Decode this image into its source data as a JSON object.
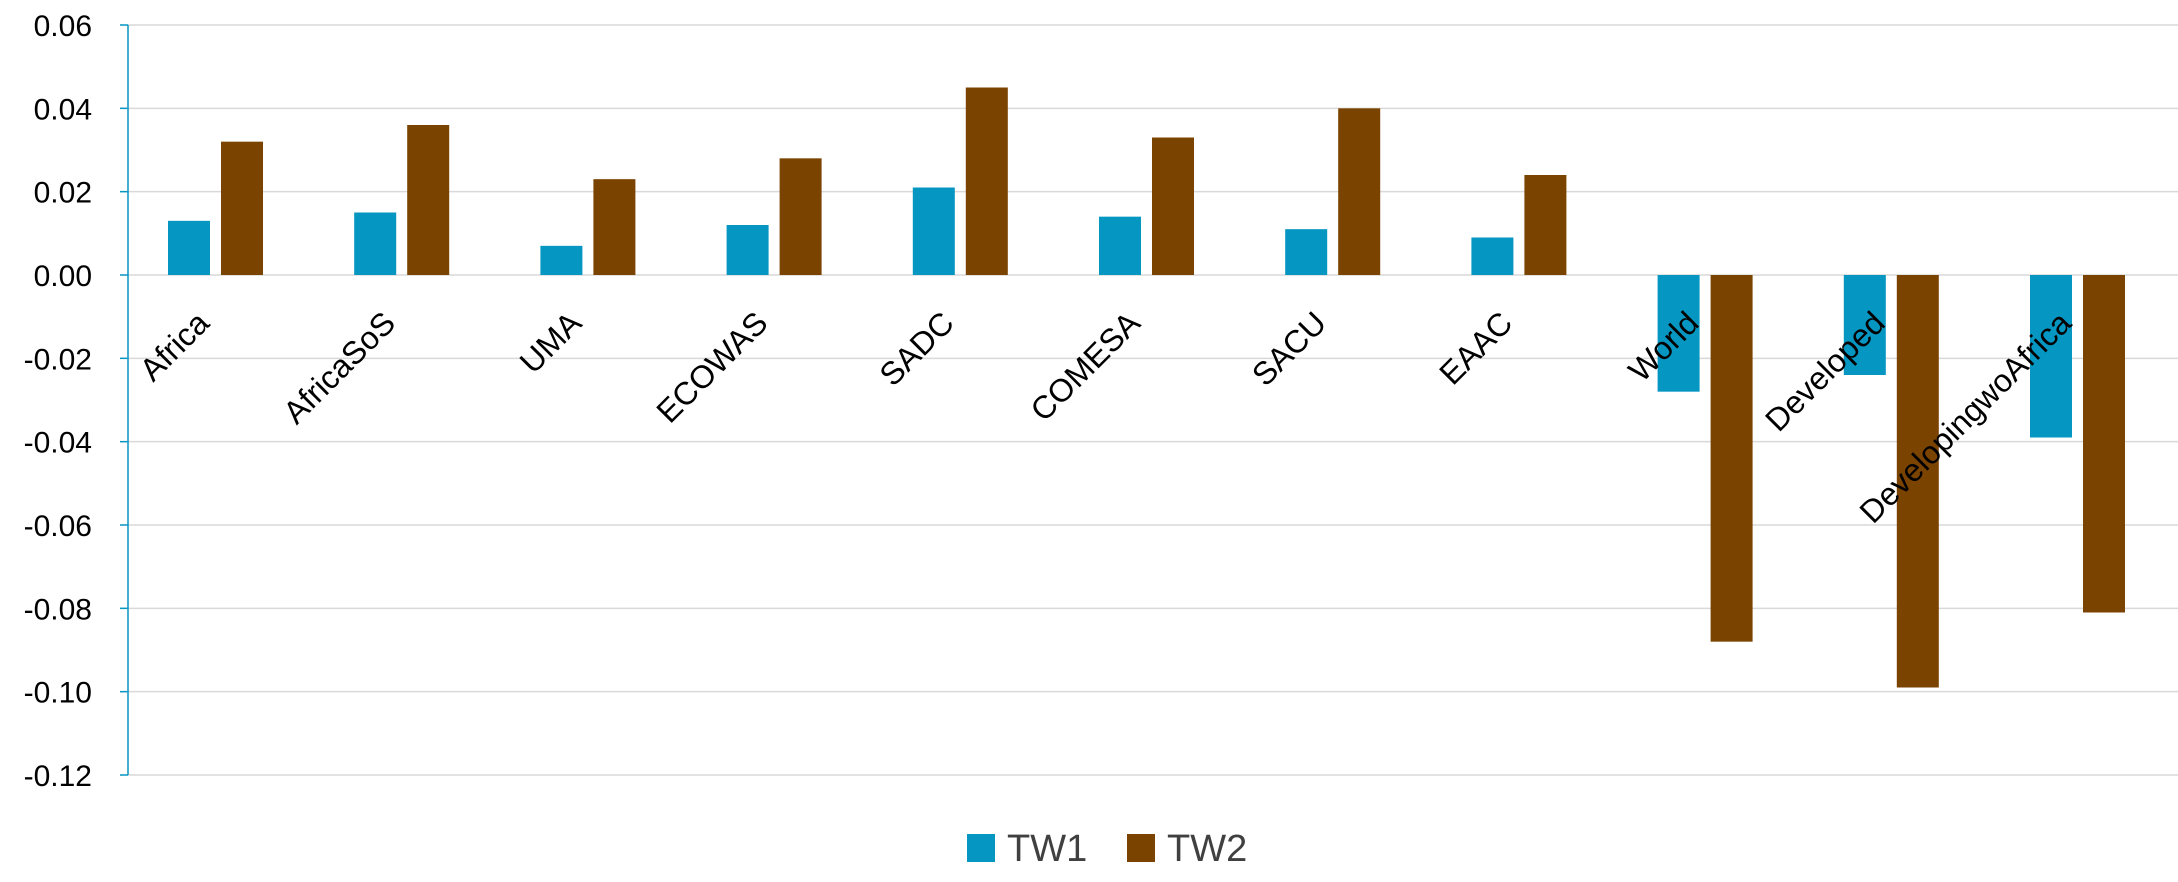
{
  "chart_data": {
    "type": "bar",
    "categories": [
      "Africa",
      "AfricaSoS",
      "UMA",
      "ECOWAS",
      "SADC",
      "COMESA",
      "SACU",
      "EAAC",
      "World",
      "Developed",
      "DevelopingwoAfrica"
    ],
    "series": [
      {
        "name": "TW1",
        "color": "#0596c2",
        "values": [
          0.013,
          0.015,
          0.007,
          0.012,
          0.021,
          0.014,
          0.011,
          0.009,
          -0.028,
          -0.024,
          -0.039
        ]
      },
      {
        "name": "TW2",
        "color": "#7b4300",
        "values": [
          0.032,
          0.036,
          0.023,
          0.028,
          0.045,
          0.033,
          0.04,
          0.024,
          -0.088,
          -0.099,
          -0.081
        ]
      }
    ],
    "ylim": [
      -0.12,
      0.06
    ],
    "yticks": [
      "0.06",
      "0.04",
      "0.02",
      "0.00",
      "-0.02",
      "-0.04",
      "-0.06",
      "-0.08",
      "-0.10",
      "-0.12"
    ],
    "grid": true,
    "legend_position": "bottom"
  }
}
